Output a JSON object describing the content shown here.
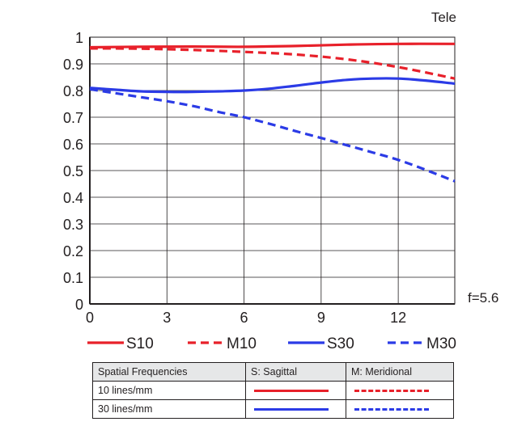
{
  "chart_data": {
    "type": "line",
    "title": "",
    "corner_label": "Tele",
    "aperture_label": "f=5.6",
    "xlabel": "",
    "ylabel": "",
    "xlim": [
      0,
      14.2
    ],
    "ylim": [
      0,
      1
    ],
    "x_ticks": [
      0,
      3,
      6,
      9,
      12
    ],
    "y_ticks": [
      0,
      0.1,
      0.2,
      0.3,
      0.4,
      0.5,
      0.6,
      0.7,
      0.8,
      0.9,
      1
    ],
    "y_tick_labels": [
      "0",
      "0.1",
      "0.2",
      "0.3",
      "0.4",
      "0.5",
      "0.6",
      "0.7",
      "0.8",
      "0.9",
      "1"
    ],
    "grid": true,
    "legend_position": "bottom",
    "series": [
      {
        "name": "S10",
        "color": "#e8202a",
        "style": "solid",
        "x": [
          0,
          2,
          4,
          6,
          8,
          10,
          12,
          14.2
        ],
        "y": [
          0.962,
          0.964,
          0.965,
          0.964,
          0.967,
          0.972,
          0.975,
          0.975
        ]
      },
      {
        "name": "M10",
        "color": "#e8202a",
        "style": "dashed",
        "x": [
          0,
          2,
          4,
          6,
          8,
          10,
          12,
          14.2
        ],
        "y": [
          0.958,
          0.957,
          0.952,
          0.945,
          0.935,
          0.917,
          0.888,
          0.845
        ]
      },
      {
        "name": "S30",
        "color": "#2b3be6",
        "style": "solid",
        "x": [
          0,
          1,
          2,
          3,
          4,
          5,
          6,
          7,
          8,
          9,
          10,
          11,
          12,
          13,
          14.2
        ],
        "y": [
          0.81,
          0.803,
          0.797,
          0.795,
          0.795,
          0.797,
          0.8,
          0.807,
          0.818,
          0.83,
          0.84,
          0.845,
          0.845,
          0.838,
          0.826
        ]
      },
      {
        "name": "M30",
        "color": "#2b3be6",
        "style": "dashed",
        "x": [
          0,
          1,
          2,
          3,
          4,
          5,
          6,
          7,
          8,
          9,
          10,
          11,
          12,
          13,
          14.2
        ],
        "y": [
          0.805,
          0.79,
          0.775,
          0.76,
          0.742,
          0.72,
          0.7,
          0.675,
          0.648,
          0.622,
          0.595,
          0.568,
          0.54,
          0.505,
          0.46
        ]
      }
    ]
  },
  "table": {
    "headers": [
      "Spatial Frequencies",
      "S: Sagittal",
      "M: Meridional"
    ],
    "rows": [
      {
        "label": "10 lines/mm"
      },
      {
        "label": "30 lines/mm"
      }
    ]
  }
}
